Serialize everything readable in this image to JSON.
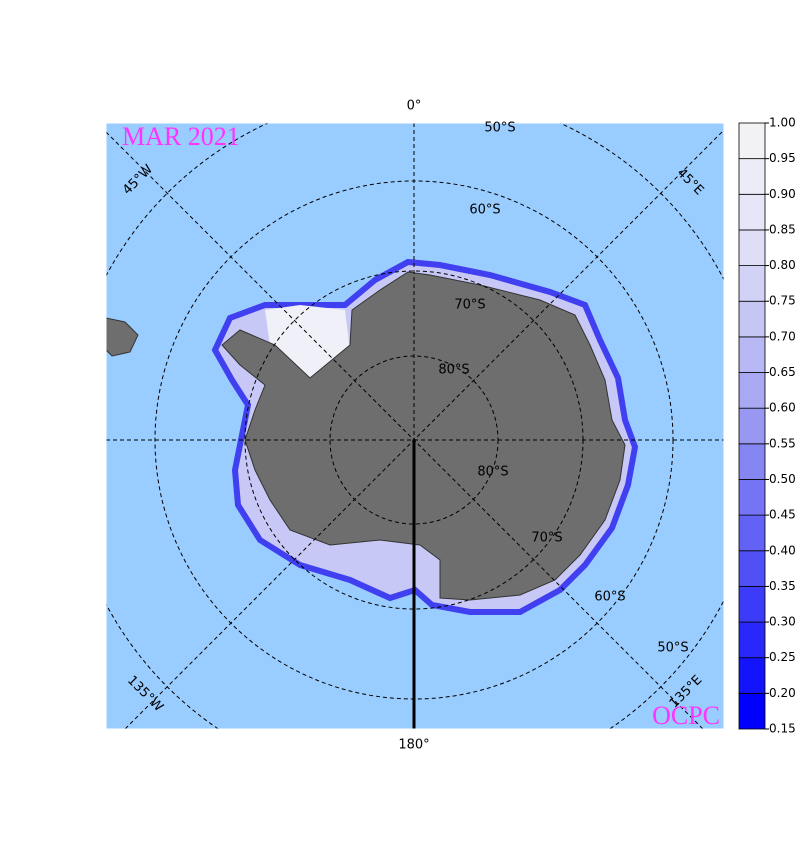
{
  "map": {
    "title": "MAR 2021",
    "credit": "OCPC",
    "meridian_labels": {
      "top": "0°",
      "bottom": "180°"
    },
    "longitude_labels": [
      "45°W",
      "45°E",
      "135°W",
      "135°E"
    ],
    "latitude_labels": [
      "50°S",
      "60°S",
      "70°S",
      "80°S",
      "80°S",
      "70°S",
      "60°S",
      "50°S"
    ]
  },
  "colorbar": {
    "ticks": [
      {
        "value": 0.15,
        "label": "0.15"
      },
      {
        "value": 0.2,
        "label": "0.20"
      },
      {
        "value": 0.25,
        "label": "0.25"
      },
      {
        "value": 0.3,
        "label": "0.30"
      },
      {
        "value": 0.35,
        "label": "0.35"
      },
      {
        "value": 0.4,
        "label": "0.40"
      },
      {
        "value": 0.45,
        "label": "0.45"
      },
      {
        "value": 0.5,
        "label": "0.50"
      },
      {
        "value": 0.55,
        "label": "0.55"
      },
      {
        "value": 0.6,
        "label": "0.60"
      },
      {
        "value": 0.65,
        "label": "0.65"
      },
      {
        "value": 0.7,
        "label": "0.70"
      },
      {
        "value": 0.75,
        "label": "0.75"
      },
      {
        "value": 0.8,
        "label": "0.80"
      },
      {
        "value": 0.85,
        "label": "0.85"
      },
      {
        "value": 0.9,
        "label": "0.90"
      },
      {
        "value": 0.95,
        "label": "0.95"
      },
      {
        "value": 1,
        "label": "1.00"
      }
    ],
    "colors": [
      "#0000ff",
      "#1414fc",
      "#2828fa",
      "#3c3cf8",
      "#5050f6",
      "#6262f5",
      "#7474f4",
      "#8686f3",
      "#9898f3",
      "#a8a8f3",
      "#b8b8f4",
      "#c6c6f5",
      "#d2d2f6",
      "#dedef7",
      "#e6e6f8",
      "#ececf8",
      "#f2f2f4"
    ]
  }
}
